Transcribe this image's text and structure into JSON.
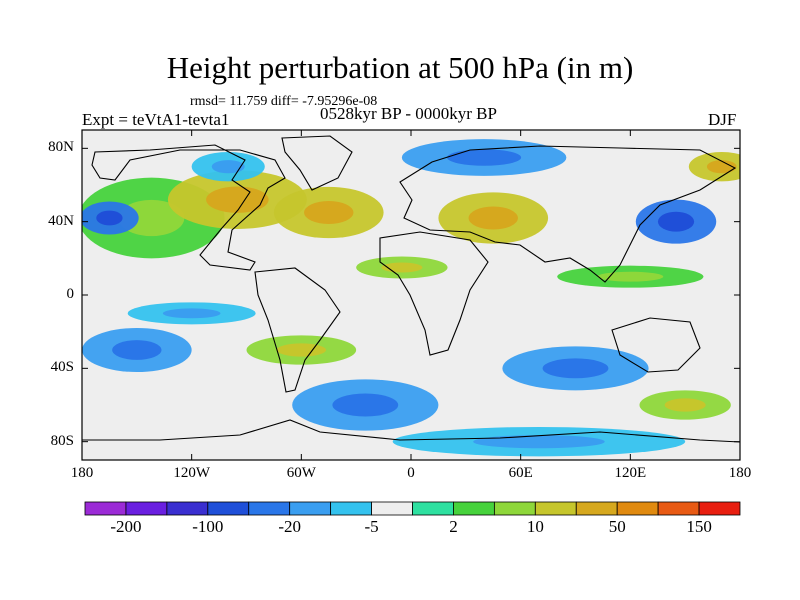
{
  "title": "Height perturbation at 500 hPa (in m)",
  "stats": "rmsd= 11.759  diff= -7.95296e-08",
  "left_label": "Expt = teVtA1-tevta1",
  "center_label": "0528kyr BP - 0000kyr BP",
  "right_label": "DJF",
  "map": {
    "lon_range": [
      -180,
      180
    ],
    "lat_range": [
      -90,
      90
    ],
    "lat_ticks": [
      {
        "value": 80,
        "label": "80N"
      },
      {
        "value": 40,
        "label": "40N"
      },
      {
        "value": 0,
        "label": "0"
      },
      {
        "value": -40,
        "label": "40S"
      },
      {
        "value": -80,
        "label": "80S"
      }
    ],
    "lon_ticks": [
      {
        "value": -180,
        "label": "180"
      },
      {
        "value": -120,
        "label": "120W"
      },
      {
        "value": -60,
        "label": "60W"
      },
      {
        "value": 0,
        "label": "0"
      },
      {
        "value": 60,
        "label": "60E"
      },
      {
        "value": 120,
        "label": "120E"
      },
      {
        "value": 180,
        "label": "180"
      }
    ]
  },
  "colorbar": {
    "colors": [
      "#9b2bd6",
      "#6a1fe0",
      "#3a2fd0",
      "#1f4fd8",
      "#2a76e8",
      "#3a9ef0",
      "#34c2ee",
      "#eeeeee",
      "#2ee0a0",
      "#46d23c",
      "#8ed73a",
      "#c6c62c",
      "#d6a81e",
      "#e08a10",
      "#e85a14",
      "#e81e10"
    ],
    "tick_labels": [
      "-200",
      "-100",
      "-20",
      "-5",
      "2",
      "10",
      "50",
      "150"
    ]
  },
  "field_regions": [
    {
      "level": 9,
      "lon": -142,
      "lat": 42,
      "rlon": 40,
      "rlat": 22
    },
    {
      "level": 11,
      "lon": -95,
      "lat": 52,
      "rlon": 38,
      "rlat": 16
    },
    {
      "level": 11,
      "lon": -45,
      "lat": 45,
      "rlon": 30,
      "rlat": 14
    },
    {
      "level": 4,
      "lon": -165,
      "lat": 42,
      "rlon": 16,
      "rlat": 9
    },
    {
      "level": 6,
      "lon": -100,
      "lat": 70,
      "rlon": 20,
      "rlat": 8
    },
    {
      "level": 11,
      "lon": 45,
      "lat": 42,
      "rlon": 30,
      "rlat": 14
    },
    {
      "level": 5,
      "lon": 40,
      "lat": 75,
      "rlon": 45,
      "rlat": 10
    },
    {
      "level": 4,
      "lon": 145,
      "lat": 40,
      "rlon": 22,
      "rlat": 12
    },
    {
      "level": 11,
      "lon": 170,
      "lat": 70,
      "rlon": 18,
      "rlat": 8
    },
    {
      "level": 10,
      "lon": -5,
      "lat": 15,
      "rlon": 25,
      "rlat": 6
    },
    {
      "level": 6,
      "lon": -120,
      "lat": -10,
      "rlon": 35,
      "rlat": 6
    },
    {
      "level": 5,
      "lon": -150,
      "lat": -30,
      "rlon": 30,
      "rlat": 12
    },
    {
      "level": 5,
      "lon": -25,
      "lat": -60,
      "rlon": 40,
      "rlat": 14
    },
    {
      "level": 5,
      "lon": 90,
      "lat": -40,
      "rlon": 40,
      "rlat": 12
    },
    {
      "level": 10,
      "lon": 150,
      "lat": -60,
      "rlon": 25,
      "rlat": 8
    },
    {
      "level": 10,
      "lon": -60,
      "lat": -30,
      "rlon": 30,
      "rlat": 8
    },
    {
      "level": 9,
      "lon": 120,
      "lat": 10,
      "rlon": 40,
      "rlat": 6
    },
    {
      "level": 6,
      "lon": 70,
      "lat": -80,
      "rlon": 80,
      "rlat": 8
    }
  ]
}
